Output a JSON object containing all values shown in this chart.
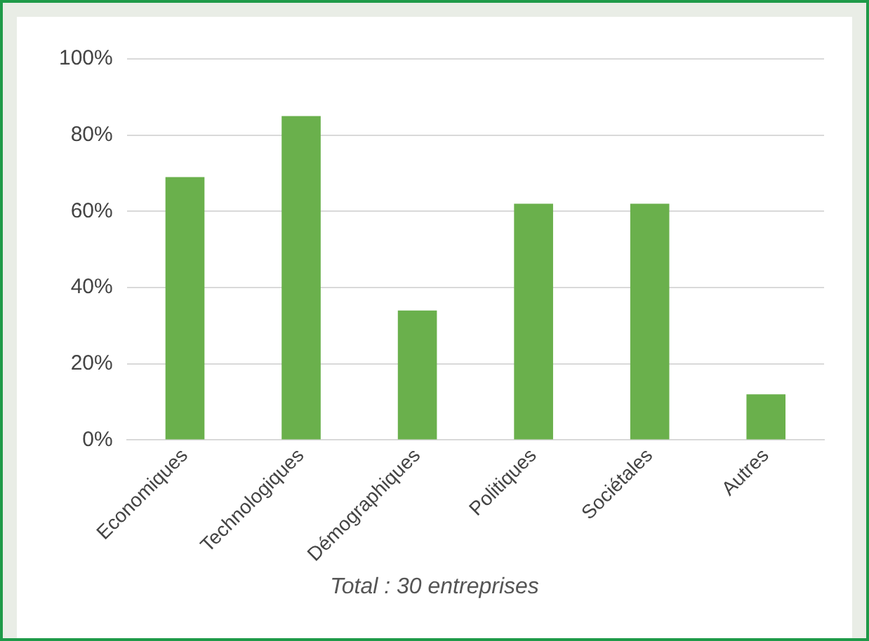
{
  "chart_data": {
    "type": "bar",
    "categories": [
      "Economiques",
      "Technologiques",
      "Démographiques",
      "Politiques",
      "Sociétales",
      "Autres"
    ],
    "values": [
      69,
      85,
      34,
      62,
      62,
      12
    ],
    "color": "#6ab04c",
    "ylim": [
      0,
      100
    ],
    "yticks": [
      {
        "value": 0,
        "label": "0%"
      },
      {
        "value": 20,
        "label": "20%"
      },
      {
        "value": 40,
        "label": "40%"
      },
      {
        "value": 60,
        "label": "60%"
      },
      {
        "value": 80,
        "label": "80%"
      },
      {
        "value": 100,
        "label": "100%"
      }
    ],
    "grid": "y",
    "legend": false,
    "annotations": [
      "Total : 30 entreprises"
    ]
  }
}
